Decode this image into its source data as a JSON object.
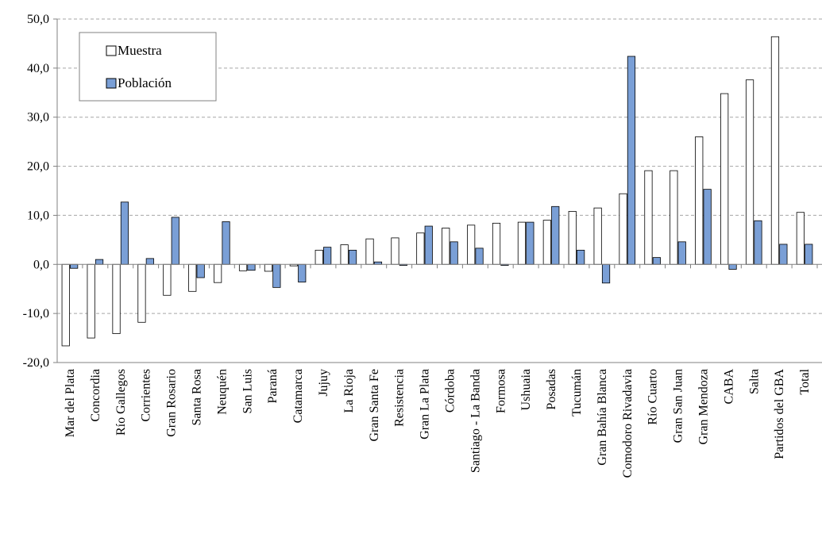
{
  "chart_data": {
    "type": "bar",
    "title": "",
    "xlabel": "",
    "ylabel": "",
    "ylim": [
      -20,
      50
    ],
    "yticks": [
      "50,0",
      "40,0",
      "30,0",
      "20,0",
      "10,0",
      "0,0",
      "-10,0",
      "-20,0"
    ],
    "ytick_values": [
      50,
      40,
      30,
      20,
      10,
      0,
      -10,
      -20
    ],
    "grid": true,
    "legend_position": "top-left",
    "categories": [
      "Mar del Plata",
      "Concordia",
      "Río Gallegos",
      "Corrientes",
      "Gran Rosario",
      "Santa Rosa",
      "Neuquén",
      "San Luis",
      "Paraná",
      "Catamarca",
      "Jujuy",
      "La Rioja",
      "Gran Santa Fe",
      "Resistencia",
      "Gran La Plata",
      "Córdoba",
      "Santiago - La Banda",
      "Formosa",
      "Ushuaia",
      "Posadas",
      "Tucumán",
      "Gran Bahía Blanca",
      "Comodoro Rivadavia",
      "Río Cuarto",
      "Gran San Juan",
      "Gran Mendoza",
      "CABA",
      "Salta",
      "Partidos del GBA",
      "Total"
    ],
    "series": [
      {
        "name": "Muestra",
        "color": "#ffffff",
        "values": [
          -16.6,
          -15.0,
          -14.1,
          -11.8,
          -6.3,
          -5.5,
          -3.7,
          -1.3,
          -1.4,
          -0.3,
          2.9,
          4.0,
          5.2,
          5.4,
          6.4,
          7.4,
          8.0,
          8.4,
          8.6,
          9.0,
          10.8,
          11.5,
          14.4,
          19.1,
          19.1,
          26.0,
          34.8,
          37.6,
          46.4,
          10.6
        ]
      },
      {
        "name": "Población",
        "color": "#7a9fd6",
        "values": [
          -0.8,
          1.0,
          12.7,
          1.2,
          9.6,
          -2.7,
          8.7,
          -1.2,
          -4.7,
          -3.6,
          3.5,
          2.9,
          0.5,
          -0.2,
          7.8,
          4.6,
          3.3,
          -0.2,
          8.6,
          11.8,
          2.9,
          -3.8,
          42.4,
          1.4,
          4.6,
          15.3,
          -1.0,
          8.9,
          4.1,
          4.1
        ]
      }
    ]
  }
}
